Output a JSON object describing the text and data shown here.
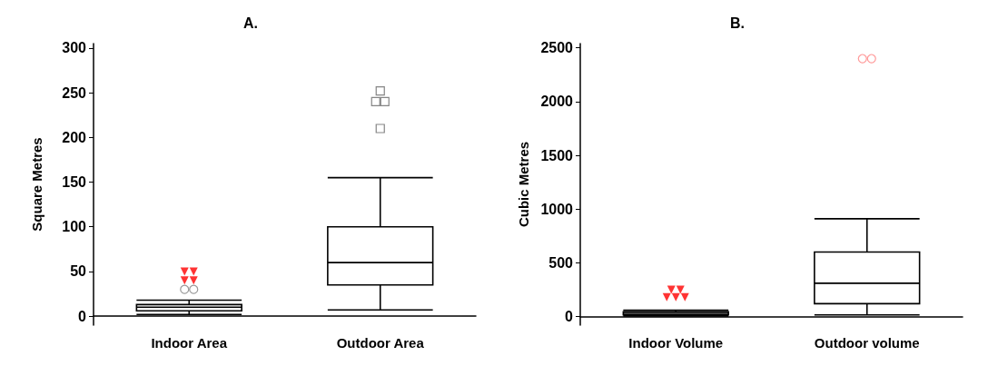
{
  "chart_data": [
    {
      "type": "box",
      "title": "A.",
      "ylabel": "Square Metres",
      "categories": [
        "Indoor Area",
        "Outdoor Area"
      ],
      "ylim": [
        -10,
        305
      ],
      "yticks": [
        0,
        50,
        100,
        150,
        200,
        250,
        300
      ],
      "series": [
        {
          "color": "#000000",
          "boxes": [
            {
              "low": 2,
              "q1": 6,
              "median": 10,
              "q3": 13,
              "high": 18
            },
            {
              "low": 7,
              "q1": 35,
              "median": 60,
              "q3": 100,
              "high": 155
            }
          ]
        },
        {
          "type": "scatter",
          "marker": "triangle",
          "color": "#ff0000",
          "x": [
            "Indoor Area",
            "Indoor Area",
            "Indoor Area",
            "Indoor Area"
          ],
          "values": [
            50,
            50,
            40,
            40
          ]
        },
        {
          "type": "scatter",
          "marker": "circle",
          "color": "#808080",
          "x": [
            "Indoor Area",
            "Indoor Area"
          ],
          "values": [
            30,
            30
          ]
        },
        {
          "type": "scatter",
          "marker": "square",
          "color": "#666666",
          "x": [
            "Outdoor Area",
            "Outdoor Area",
            "Outdoor Area",
            "Outdoor Area"
          ],
          "values": [
            252,
            240,
            240,
            210
          ]
        }
      ]
    },
    {
      "type": "box",
      "title": "B.",
      "ylabel": "Cubic Metres",
      "categories": [
        "Indoor Volume",
        "Outdoor volume"
      ],
      "ylim": [
        -80,
        2540
      ],
      "yticks": [
        0,
        500,
        1000,
        1500,
        2000,
        2500
      ],
      "series": [
        {
          "color": "#000000",
          "boxes": [
            {
              "low": 5,
              "q1": 15,
              "median": 30,
              "q3": 45,
              "high": 60
            },
            {
              "low": 15,
              "q1": 120,
              "median": 310,
              "q3": 600,
              "high": 910
            }
          ]
        },
        {
          "type": "scatter",
          "marker": "triangle",
          "color": "#ff0000",
          "x": [
            "Indoor Volume",
            "Indoor Volume",
            "Indoor Volume",
            "Indoor Volume",
            "Indoor Volume"
          ],
          "values": [
            250,
            250,
            180,
            180,
            180
          ]
        },
        {
          "type": "scatter",
          "marker": "circle",
          "color": "#ff8080",
          "x": [
            "Outdoor volume",
            "Outdoor volume"
          ],
          "values": [
            2400,
            2400
          ]
        }
      ]
    }
  ]
}
